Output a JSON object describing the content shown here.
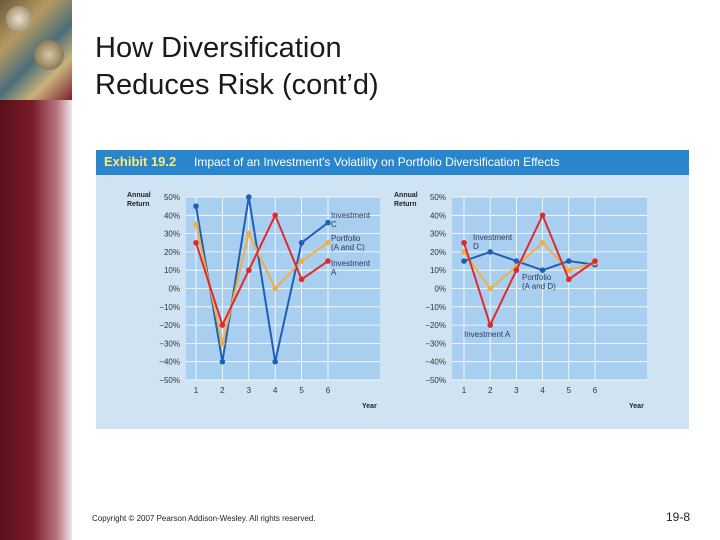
{
  "slide": {
    "title": "How Diversification\nReduces Risk (cont’d)",
    "exhibit_number": "Exhibit 19.2",
    "exhibit_title": "Impact of an Investment's Volatility on Portfolio Diversification Effects",
    "footer": "Copyright © 2007 Pearson Addison-Wesley. All rights reserved.",
    "page_number": "19-8"
  },
  "colors": {
    "investment_c": "#1f5fb4",
    "investment_a": "#e02a2a",
    "investment_d": "#1f5fb4",
    "portfolio": "#f3ad45",
    "plot_bg": "#a9cff0",
    "exhibit_bg": "#cfe3f2",
    "header_bar": "#2a86cc"
  },
  "chart_data": [
    {
      "type": "line",
      "ylabel": "Annual\nReturn",
      "xlabel": "Year",
      "x": [
        1,
        2,
        3,
        4,
        5,
        6
      ],
      "ylim": [
        -50,
        50
      ],
      "yticks": [
        "50%",
        "40%",
        "30%",
        "20%",
        "10%",
        "0%",
        "−10%",
        "−20%",
        "−30%",
        "−40%",
        "−50%"
      ],
      "yticks_values": [
        50,
        40,
        30,
        20,
        10,
        0,
        -10,
        -20,
        -30,
        -40,
        -50
      ],
      "xticks": [
        "1",
        "2",
        "3",
        "4",
        "5",
        "6"
      ],
      "series": [
        {
          "name": "Investment\nC",
          "color": "#1f5fb4",
          "values": [
            45,
            -40,
            50,
            -40,
            25,
            36
          ]
        },
        {
          "name": "Portfolio\n(A and C)",
          "color": "#f3ad45",
          "values": [
            35,
            -30,
            30,
            0,
            15,
            25
          ]
        },
        {
          "name": "Investment\nA",
          "color": "#e02a2a",
          "values": [
            25,
            -20,
            10,
            40,
            5,
            15
          ]
        }
      ]
    },
    {
      "type": "line",
      "ylabel": "Annual\nReturn",
      "xlabel": "Year",
      "x": [
        1,
        2,
        3,
        4,
        5,
        6
      ],
      "ylim": [
        -50,
        50
      ],
      "yticks": [
        "50%",
        "40%",
        "30%",
        "20%",
        "10%",
        "0%",
        "−10%",
        "−20%",
        "−30%",
        "−40%",
        "−50%"
      ],
      "yticks_values": [
        50,
        40,
        30,
        20,
        10,
        0,
        -10,
        -20,
        -30,
        -40,
        -50
      ],
      "xticks": [
        "1",
        "2",
        "3",
        "4",
        "5",
        "6"
      ],
      "series": [
        {
          "name": "Investment\nD",
          "color": "#1f5fb4",
          "values": [
            15,
            20,
            15,
            10,
            15,
            13
          ]
        },
        {
          "name": "Portfolio\n(A and D)",
          "color": "#f3ad45",
          "values": [
            20,
            0,
            12,
            25,
            10,
            14
          ]
        },
        {
          "name": "Investment A",
          "color": "#e02a2a",
          "values": [
            25,
            -20,
            10,
            40,
            5,
            15
          ]
        }
      ]
    }
  ]
}
